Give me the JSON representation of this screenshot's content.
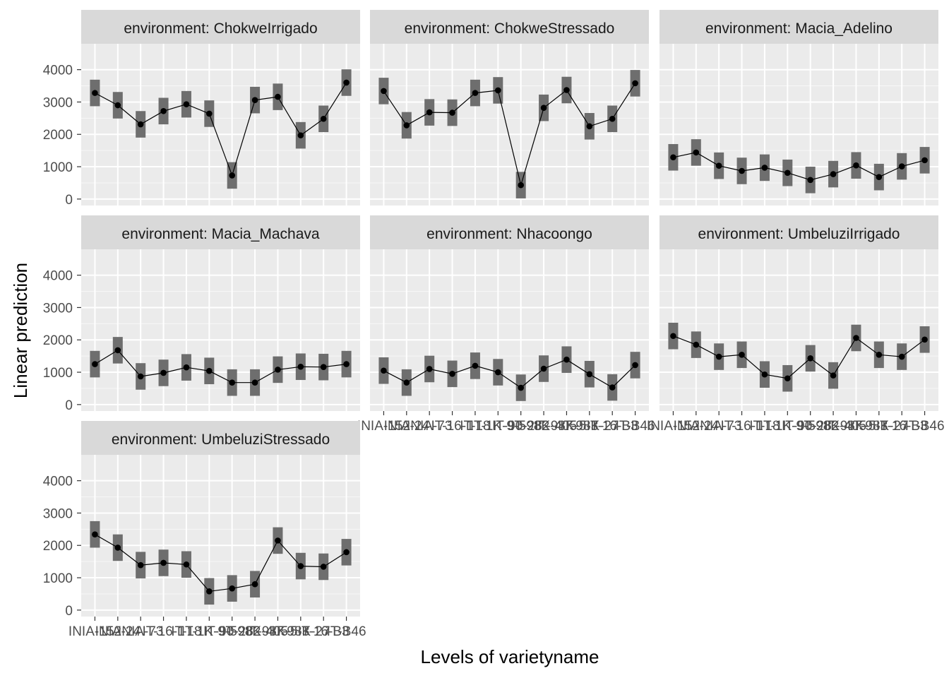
{
  "chart_data": {
    "type": "line",
    "xlabel": "Levels of varietyname",
    "ylabel": "Linear prediction",
    "ylim": [
      -200,
      4800
    ],
    "yticks": [
      0,
      1000,
      2000,
      3000,
      4000
    ],
    "grid": true,
    "strip_prefix": "environment: ",
    "x_tick_labels": [
      "INIA-152",
      "INIA-24",
      "INIA-73",
      "IT-16-1",
      "IT-18",
      "IT-1K-9-5",
      "IT-90-282",
      "IT-98K-405",
      "IT-98K-5-3",
      "IT-98K-27",
      "IT-16-B3",
      "IT-B46"
    ],
    "panels": [
      {
        "environment": "ChokweIrrigado",
        "values": [
          3280,
          2900,
          2310,
          2720,
          2930,
          2640,
          730,
          3060,
          3160,
          1970,
          2480,
          3600
        ],
        "lower": [
          2870,
          2490,
          1900,
          2310,
          2520,
          2230,
          320,
          2650,
          2750,
          1560,
          2070,
          3190
        ],
        "upper": [
          3690,
          3310,
          2720,
          3130,
          3340,
          3050,
          1140,
          3470,
          3570,
          2380,
          2890,
          4010
        ]
      },
      {
        "environment": "ChokweStressado",
        "values": [
          3340,
          2280,
          2680,
          2670,
          3280,
          3360,
          430,
          2820,
          3370,
          2250,
          2480,
          3580
        ],
        "lower": [
          2930,
          1870,
          2270,
          2260,
          2870,
          2950,
          20,
          2410,
          2960,
          1840,
          2070,
          3170
        ],
        "upper": [
          3750,
          2690,
          3090,
          3080,
          3690,
          3770,
          840,
          3230,
          3780,
          2660,
          2890,
          3990
        ]
      },
      {
        "environment": "Macia_Adelino",
        "values": [
          1290,
          1440,
          1030,
          870,
          970,
          810,
          590,
          770,
          1040,
          680,
          1010,
          1200
        ],
        "lower": [
          880,
          1030,
          620,
          460,
          560,
          400,
          180,
          360,
          630,
          270,
          600,
          790
        ],
        "upper": [
          1700,
          1850,
          1440,
          1280,
          1380,
          1220,
          1000,
          1180,
          1450,
          1090,
          1420,
          1610
        ]
      },
      {
        "environment": "Macia_Machava",
        "values": [
          1250,
          1680,
          870,
          980,
          1150,
          1040,
          680,
          680,
          1080,
          1170,
          1160,
          1250
        ],
        "lower": [
          840,
          1270,
          460,
          570,
          740,
          630,
          270,
          270,
          670,
          760,
          750,
          840
        ],
        "upper": [
          1660,
          2090,
          1280,
          1390,
          1560,
          1450,
          1090,
          1090,
          1490,
          1580,
          1570,
          1660
        ]
      },
      {
        "environment": "Nhacoongo",
        "values": [
          1050,
          680,
          1100,
          950,
          1200,
          1000,
          520,
          1110,
          1390,
          940,
          530,
          1220
        ],
        "lower": [
          640,
          270,
          690,
          540,
          790,
          590,
          110,
          700,
          980,
          530,
          120,
          810
        ],
        "upper": [
          1460,
          1090,
          1510,
          1360,
          1610,
          1410,
          930,
          1520,
          1800,
          1350,
          940,
          1630
        ]
      },
      {
        "environment": "UmbeluziIrrigado",
        "values": [
          2120,
          1850,
          1480,
          1540,
          930,
          810,
          1430,
          900,
          2060,
          1540,
          1480,
          2010
        ],
        "lower": [
          1710,
          1440,
          1070,
          1130,
          520,
          400,
          1020,
          490,
          1650,
          1130,
          1070,
          1600
        ],
        "upper": [
          2530,
          2260,
          1890,
          1950,
          1340,
          1220,
          1840,
          1310,
          2470,
          1950,
          1890,
          2420
        ]
      },
      {
        "environment": "UmbeluziStressado",
        "values": [
          2340,
          1930,
          1390,
          1460,
          1410,
          580,
          670,
          800,
          2150,
          1360,
          1340,
          1790
        ],
        "lower": [
          1930,
          1520,
          980,
          1050,
          1000,
          170,
          260,
          390,
          1740,
          950,
          930,
          1380
        ],
        "upper": [
          2750,
          2340,
          1800,
          1870,
          1820,
          990,
          1080,
          1210,
          2560,
          1770,
          1750,
          2200
        ]
      }
    ]
  }
}
